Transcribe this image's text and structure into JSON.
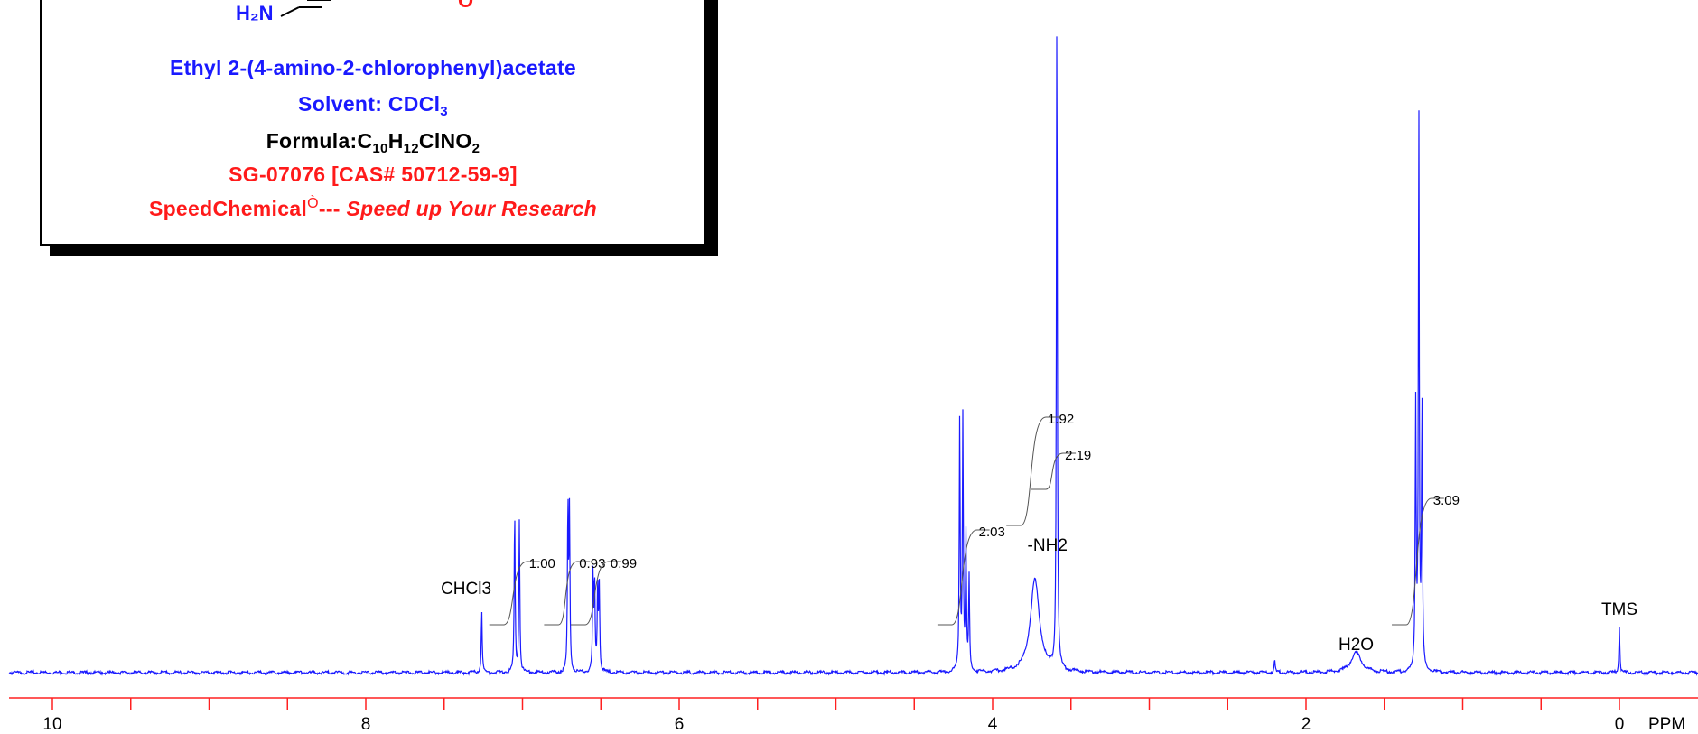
{
  "info_box": {
    "structure_label_amine": "H₂N",
    "structure_label_oxygen": "O",
    "compound_name": "Ethyl 2-(4-amino-2-chlorophenyl)acetate",
    "solvent_prefix": "Solvent: CDCl",
    "solvent_sub": "3",
    "formula_prefix": "Formula:C",
    "formula_c": "10",
    "formula_h_label": "H",
    "formula_h": "12",
    "formula_rest": "ClNO",
    "formula_o": "2",
    "catalog": "SG-07076 [CAS# 50712-59-9]",
    "brand": "SpeedChemical",
    "brand_mark": "Ò",
    "brand_sep": "--- ",
    "slogan": "Speed up Your Research",
    "colors": {
      "blue": "#1a1aff",
      "red": "#ff1a1a",
      "black": "#000000"
    }
  },
  "chart_data": {
    "type": "line",
    "title": "",
    "xlabel": "PPM",
    "ylabel": "",
    "x_reversed": true,
    "xlim": [
      10.35,
      -0.45
    ],
    "ylim": [
      0,
      1
    ],
    "x_tick_labels": [
      {
        "value": 10,
        "label": "10"
      },
      {
        "value": 8,
        "label": "8"
      },
      {
        "value": 6,
        "label": "6"
      },
      {
        "value": 4,
        "label": "4"
      },
      {
        "value": 2,
        "label": "2"
      },
      {
        "value": 0,
        "label": "0"
      }
    ],
    "minor_ticks_every": 0.5,
    "line_color": "#1a1aff",
    "axis_color": "#ff2020",
    "peaks": [
      {
        "ppm": 7.26,
        "height": 0.095,
        "assignment": "CHCl3"
      },
      {
        "ppm": 7.05,
        "height": 0.245
      },
      {
        "ppm": 7.02,
        "height": 0.23
      },
      {
        "ppm": 6.71,
        "height": 0.25
      },
      {
        "ppm": 6.7,
        "height": 0.235
      },
      {
        "ppm": 6.55,
        "height": 0.145
      },
      {
        "ppm": 6.54,
        "height": 0.135
      },
      {
        "ppm": 6.52,
        "height": 0.135
      },
      {
        "ppm": 6.51,
        "height": 0.125
      },
      {
        "ppm": 4.21,
        "height": 0.38
      },
      {
        "ppm": 4.19,
        "height": 0.38
      },
      {
        "ppm": 4.17,
        "height": 0.2
      },
      {
        "ppm": 4.15,
        "height": 0.14
      },
      {
        "ppm": 3.59,
        "height": 1.0
      },
      {
        "ppm": 3.73,
        "height": 0.14,
        "width": 0.035,
        "assignment": "-NH2"
      },
      {
        "ppm": 2.2,
        "height": 0.02
      },
      {
        "ppm": 1.68,
        "height": 0.03,
        "width": 0.04,
        "assignment": "H2O"
      },
      {
        "ppm": 1.3,
        "height": 0.4
      },
      {
        "ppm": 1.28,
        "height": 0.84
      },
      {
        "ppm": 1.26,
        "height": 0.4
      },
      {
        "ppm": 0.0,
        "height": 0.07,
        "assignment": "TMS"
      }
    ],
    "integrals": [
      {
        "start": 7.12,
        "end": 6.97,
        "value": "1.00"
      },
      {
        "start": 6.77,
        "end": 6.65,
        "value": "0.93"
      },
      {
        "start": 6.6,
        "end": 6.45,
        "value": "0.99"
      },
      {
        "start": 4.26,
        "end": 4.1,
        "value": "2.03"
      },
      {
        "start": 3.82,
        "end": 3.66,
        "value": "1.92"
      },
      {
        "start": 3.66,
        "end": 3.55,
        "value": "2.19"
      },
      {
        "start": 1.36,
        "end": 1.2,
        "value": "3.09"
      }
    ],
    "annotations": [
      {
        "ppm": 7.36,
        "text": "CHCl3"
      },
      {
        "ppm": 3.65,
        "text": "-NH2"
      },
      {
        "ppm": 1.68,
        "text": "H2O"
      },
      {
        "ppm": 0.0,
        "text": "TMS"
      }
    ]
  }
}
